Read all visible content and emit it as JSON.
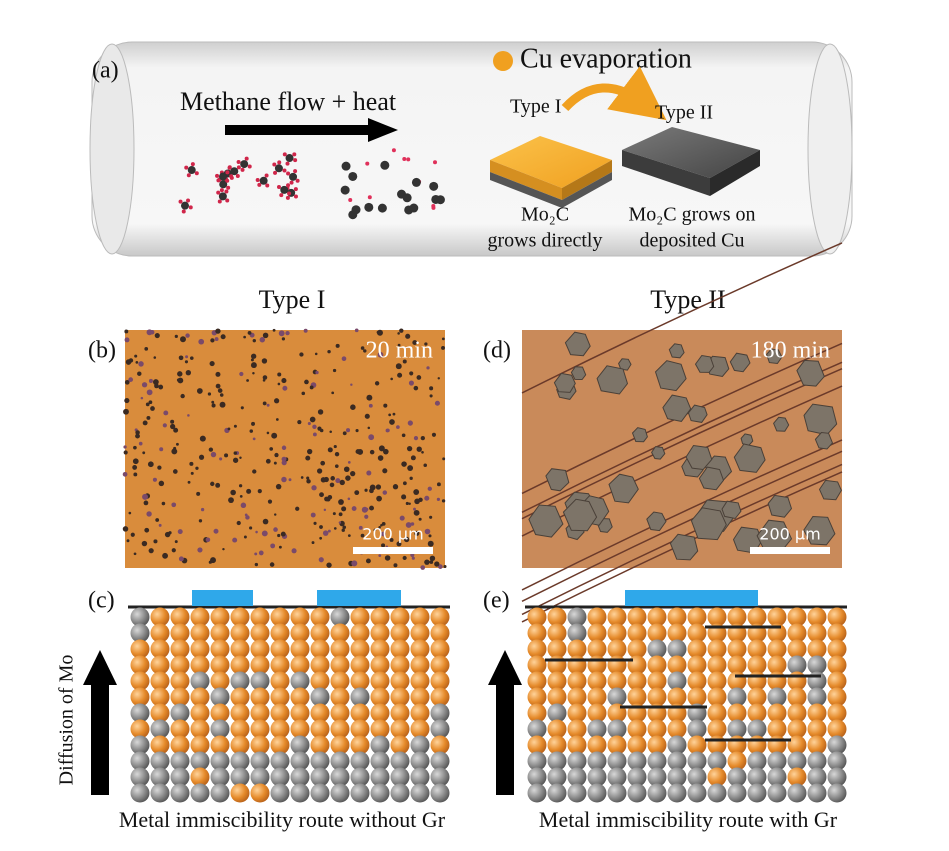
{
  "panel_a": {
    "label": "(a)",
    "flow": "Methane flow + heat",
    "legend": "Cu evaporation",
    "type1": "Type I",
    "type2": "Type II",
    "caption1": [
      "Mo₂C",
      "grows directly"
    ],
    "caption2": [
      "Mo₂C grows on",
      "deposited Cu"
    ]
  },
  "columns": [
    "Type I",
    "Type II"
  ],
  "micrographs": [
    {
      "label": "(b)",
      "time": "20 min",
      "scale": "200 µm"
    },
    {
      "label": "(d)",
      "time": "180 min",
      "scale": "200 µm"
    }
  ],
  "lattices": [
    {
      "label": "(c)",
      "caption": "Metal immiscibility route without Gr"
    },
    {
      "label": "(e)",
      "caption": "Metal immiscibility route with Gr"
    }
  ],
  "axis_label": "Diffusion of Mo"
}
